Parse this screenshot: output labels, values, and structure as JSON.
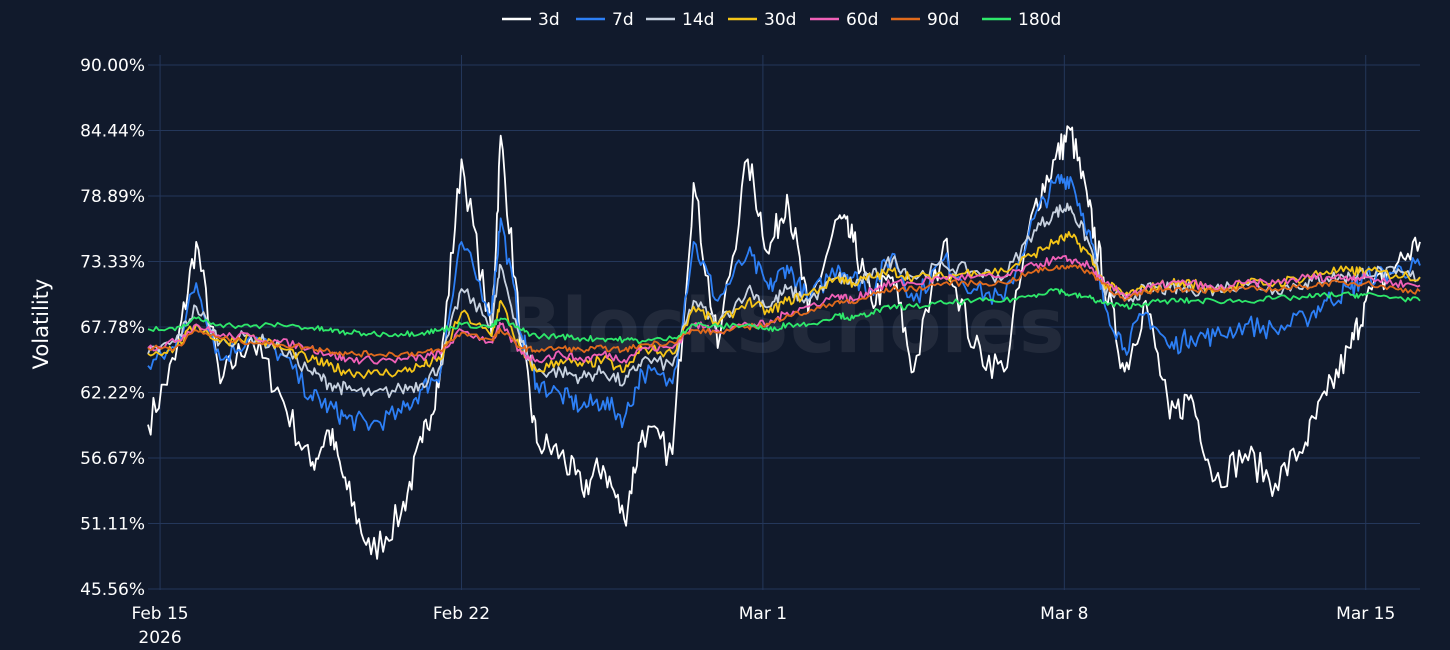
{
  "chart_data": {
    "type": "line",
    "title": "",
    "xlabel": "",
    "ylabel": "Volatility",
    "ylim": [
      45.56,
      90.0
    ],
    "xlim": [
      -0.4,
      41.8
    ],
    "y_ticks": [
      45.56,
      51.11,
      56.67,
      62.22,
      67.78,
      73.33,
      78.89,
      84.44,
      90.0
    ],
    "y_tick_labels": [
      "45.56%",
      "51.11%",
      "56.67%",
      "62.22%",
      "67.78%",
      "73.33%",
      "78.89%",
      "84.44%",
      "90.00%"
    ],
    "x_ticks": [
      0,
      10,
      20,
      30,
      40
    ],
    "x_tick_labels": [
      "Feb 15",
      "Feb 22",
      "Mar 1",
      "Mar 8",
      "Mar 15"
    ],
    "x_tick_sublabel": "2026",
    "x_unit": "days since Feb 15 2026 00:00 (x-axis spans Feb 14 to Mar 16)",
    "legend_position": "top",
    "grid": true,
    "watermark": "BlockScholes",
    "x": [
      -0.4,
      0.5,
      1.2,
      2.0,
      3.0,
      4.0,
      5.0,
      5.6,
      6.2,
      7.0,
      8.0,
      8.7,
      9.3,
      10.0,
      11.0,
      11.3,
      12.0,
      12.5,
      13.3,
      14.0,
      14.7,
      15.4,
      16.0,
      17.0,
      17.7,
      18.5,
      19.5,
      20.2,
      20.8,
      21.5,
      22.5,
      23.0,
      23.6,
      24.3,
      25.0,
      26.0,
      27.0,
      28.0,
      29.0,
      29.7,
      30.2,
      30.8,
      31.3,
      32.0,
      32.7,
      33.5,
      34.2,
      35.0,
      36.0,
      37.0,
      38.0,
      38.7,
      39.5,
      40.0,
      41.0,
      41.8
    ],
    "series": [
      {
        "name": "3d",
        "color": "#ffffff",
        "values": [
          59.5,
          65.0,
          75.0,
          63.0,
          67.0,
          62.0,
          56.0,
          59.0,
          54.0,
          48.5,
          52.0,
          58.0,
          64.0,
          82.0,
          67.0,
          84.0,
          66.0,
          58.0,
          57.0,
          54.0,
          56.0,
          51.5,
          59.0,
          57.0,
          80.0,
          66.0,
          82.0,
          74.0,
          79.0,
          69.0,
          77.0,
          75.0,
          70.0,
          72.0,
          64.0,
          75.0,
          66.0,
          64.0,
          78.0,
          82.0,
          84.5,
          78.0,
          72.0,
          64.0,
          70.0,
          60.0,
          62.0,
          54.8,
          57.0,
          54.5,
          58.0,
          62.0,
          66.0,
          70.0,
          73.0,
          75.0
        ]
      },
      {
        "name": "7d",
        "color": "#2d7ff5",
        "values": [
          64.5,
          66.0,
          71.5,
          65.0,
          67.0,
          65.5,
          62.0,
          61.0,
          60.0,
          59.5,
          60.5,
          62.5,
          64.0,
          75.0,
          69.0,
          77.0,
          67.0,
          63.0,
          62.0,
          61.0,
          61.5,
          60.0,
          64.0,
          63.0,
          75.0,
          70.0,
          74.0,
          71.0,
          73.0,
          70.0,
          73.0,
          72.0,
          71.0,
          74.0,
          70.0,
          73.5,
          71.0,
          70.0,
          77.0,
          80.0,
          80.5,
          76.0,
          70.0,
          66.0,
          69.0,
          66.0,
          67.0,
          67.0,
          68.0,
          67.5,
          68.5,
          70.0,
          71.0,
          72.0,
          72.5,
          73.0
        ]
      },
      {
        "name": "14d",
        "color": "#c8d2e0",
        "values": [
          65.5,
          66.5,
          69.5,
          66.5,
          67.0,
          66.0,
          64.0,
          63.0,
          62.5,
          62.0,
          62.5,
          63.0,
          64.5,
          71.0,
          68.0,
          73.0,
          66.5,
          64.0,
          64.0,
          63.5,
          64.0,
          63.0,
          65.0,
          64.5,
          70.0,
          68.0,
          71.0,
          69.5,
          71.0,
          70.0,
          72.0,
          71.5,
          72.0,
          73.5,
          72.0,
          73.0,
          72.5,
          72.0,
          76.0,
          77.5,
          78.0,
          75.0,
          71.0,
          70.0,
          71.0,
          71.0,
          71.0,
          71.0,
          71.5,
          71.0,
          71.5,
          72.0,
          72.0,
          72.5,
          72.3,
          72.0
        ]
      },
      {
        "name": "30d",
        "color": "#f5c518",
        "values": [
          65.5,
          66.0,
          68.0,
          66.5,
          67.0,
          66.0,
          65.0,
          64.5,
          64.0,
          63.8,
          64.0,
          64.5,
          65.0,
          69.0,
          67.0,
          70.0,
          65.5,
          64.0,
          65.0,
          64.5,
          65.0,
          64.0,
          66.0,
          65.5,
          69.5,
          68.0,
          70.0,
          69.0,
          70.0,
          70.5,
          72.0,
          71.5,
          72.0,
          72.5,
          72.0,
          72.0,
          72.5,
          72.5,
          74.0,
          75.0,
          75.5,
          74.0,
          71.5,
          70.5,
          71.0,
          71.5,
          71.5,
          71.0,
          71.5,
          71.5,
          72.0,
          72.5,
          72.5,
          72.5,
          72.2,
          72.0
        ]
      },
      {
        "name": "60d",
        "color": "#f060b8",
        "values": [
          66.0,
          66.5,
          68.0,
          67.0,
          67.0,
          66.5,
          66.0,
          65.5,
          65.0,
          65.0,
          65.0,
          65.2,
          65.5,
          67.5,
          66.5,
          68.0,
          65.5,
          65.0,
          65.5,
          65.0,
          65.5,
          65.0,
          66.0,
          66.0,
          68.0,
          67.5,
          68.0,
          68.0,
          69.0,
          69.5,
          70.5,
          70.0,
          71.0,
          71.5,
          71.5,
          72.0,
          72.0,
          72.0,
          73.0,
          73.5,
          73.5,
          73.0,
          71.5,
          70.5,
          71.0,
          71.5,
          71.5,
          71.0,
          71.5,
          71.5,
          72.0,
          72.0,
          72.0,
          72.0,
          71.5,
          71.3
        ]
      },
      {
        "name": "90d",
        "color": "#e06a1c",
        "values": [
          66.0,
          66.0,
          67.5,
          66.8,
          66.5,
          66.3,
          66.0,
          65.8,
          65.5,
          65.5,
          65.5,
          65.6,
          65.8,
          67.3,
          66.7,
          67.5,
          66.0,
          65.8,
          66.0,
          65.8,
          66.0,
          65.8,
          66.3,
          66.5,
          67.5,
          67.3,
          67.8,
          68.0,
          68.8,
          69.0,
          70.0,
          69.8,
          70.5,
          71.0,
          71.0,
          71.5,
          71.5,
          71.5,
          72.5,
          72.8,
          73.0,
          72.5,
          71.5,
          70.0,
          70.8,
          71.0,
          71.0,
          70.8,
          71.0,
          71.0,
          71.2,
          71.5,
          71.5,
          71.5,
          71.0,
          70.8
        ]
      },
      {
        "name": "180d",
        "color": "#2ee86a",
        "values": [
          67.6,
          67.5,
          68.5,
          68.0,
          67.8,
          68.0,
          67.7,
          67.5,
          67.3,
          67.2,
          67.2,
          67.3,
          67.5,
          68.0,
          67.8,
          68.5,
          67.5,
          67.0,
          67.0,
          66.8,
          66.8,
          66.7,
          66.6,
          66.8,
          68.0,
          67.8,
          68.0,
          67.5,
          68.0,
          68.0,
          68.8,
          68.5,
          69.0,
          69.5,
          69.5,
          69.8,
          70.0,
          70.0,
          70.5,
          71.0,
          70.5,
          70.3,
          69.8,
          69.5,
          69.8,
          70.0,
          70.0,
          70.0,
          70.0,
          70.2,
          70.3,
          70.5,
          70.5,
          70.5,
          70.3,
          70.0
        ]
      }
    ]
  }
}
